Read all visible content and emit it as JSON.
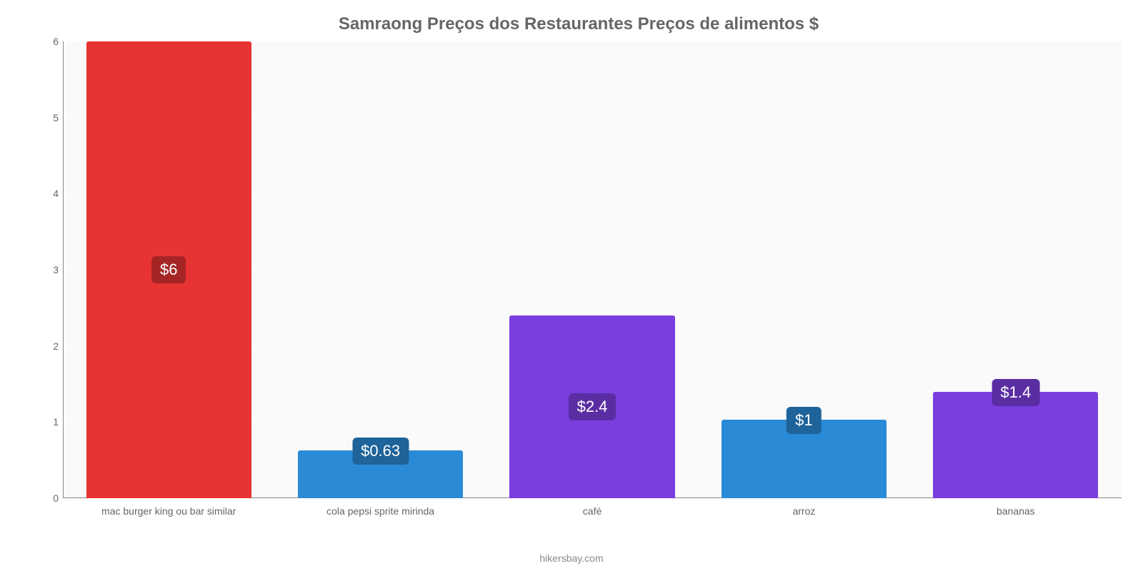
{
  "chart": {
    "type": "bar",
    "title": "Samraong Preços dos Restaurantes Preços de alimentos $",
    "title_color": "#666666",
    "title_fontsize": 24,
    "background_color": "#ffffff",
    "plot_background": "#fafafa",
    "grid_color": "#ffffff",
    "axis_line_color": "#888888",
    "label_color": "#666666",
    "label_fontsize": 14,
    "categories": [
      "mac burger king ou bar similar",
      "cola pepsi sprite mirinda",
      "café",
      "arroz",
      "bananas"
    ],
    "values": [
      6,
      0.63,
      2.4,
      1.03,
      1.4
    ],
    "value_labels": [
      "$6",
      "$0.63",
      "$2.4",
      "$1",
      "$1.4"
    ],
    "bar_colors": [
      "#e73333",
      "#2a8ad6",
      "#7a3ede",
      "#2a8ad6",
      "#7a3ede"
    ],
    "badge_colors": [
      "#a52525",
      "#1e6399",
      "#5a2da3",
      "#1e6399",
      "#5a2da3"
    ],
    "badge_fontsize": 22,
    "ylim": [
      0,
      6
    ],
    "ytick_step": 1,
    "yticks": [
      0,
      1,
      2,
      3,
      4,
      5,
      6
    ],
    "bar_width": 0.78,
    "footer": "hikersbay.com",
    "footer_color": "#888888"
  }
}
